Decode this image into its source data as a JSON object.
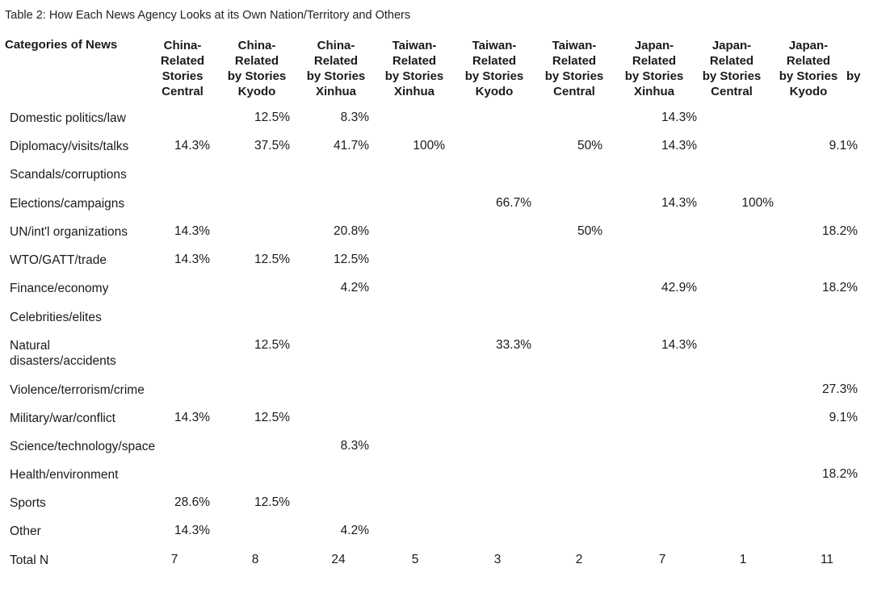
{
  "caption": "Table 2: How Each News Agency Looks at its Own Nation/Territory and Others",
  "stub_header": "Categories of News",
  "column_headers": [
    [
      "China-",
      "Related",
      "Stories",
      "Central"
    ],
    [
      "China-",
      "Related",
      "by Stories",
      "Kyodo"
    ],
    [
      "China-",
      "Related",
      "by Stories",
      "Xinhua"
    ],
    [
      "Taiwan-",
      "Related",
      "by Stories",
      "Xinhua"
    ],
    [
      "Taiwan-",
      "Related",
      "by Stories",
      "Kyodo"
    ],
    [
      "Taiwan-",
      "Related",
      "by Stories",
      "Central"
    ],
    [
      "Japan-",
      "Related",
      "by Stories",
      "Xinhua"
    ],
    [
      "Japan-",
      "Related",
      "by Stories",
      "Central"
    ],
    [
      "Japan-",
      "Related",
      "by Stories",
      "Kyodo"
    ]
  ],
  "trailing_header": "by",
  "rows": [
    {
      "category": [
        "Domestic politics/law"
      ],
      "values": [
        "",
        "12.5%",
        "8.3%",
        "",
        "",
        "",
        "14.3%",
        "",
        ""
      ]
    },
    {
      "category": [
        "Diplomacy/visits/talks"
      ],
      "values": [
        "14.3%",
        "37.5%",
        "41.7%",
        "100%",
        "",
        "50%",
        "14.3%",
        "",
        "9.1%"
      ]
    },
    {
      "category": [
        "Scandals/corruptions"
      ],
      "values": [
        "",
        "",
        "",
        "",
        "",
        "",
        "",
        "",
        ""
      ]
    },
    {
      "category": [
        "Elections/campaigns"
      ],
      "values": [
        "",
        "",
        "",
        "",
        "66.7%",
        "",
        "14.3%",
        "100%",
        ""
      ]
    },
    {
      "category": [
        "UN/int'l organizations"
      ],
      "values": [
        "14.3%",
        "",
        "20.8%",
        "",
        "",
        "50%",
        "",
        "",
        "18.2%"
      ]
    },
    {
      "category": [
        "WTO/GATT/trade"
      ],
      "values": [
        "14.3%",
        "12.5%",
        "12.5%",
        "",
        "",
        "",
        "",
        "",
        ""
      ]
    },
    {
      "category": [
        "Finance/economy"
      ],
      "values": [
        "",
        "",
        "4.2%",
        "",
        "",
        "",
        "42.9%",
        "",
        "18.2%"
      ]
    },
    {
      "category": [
        "Celebrities/elites"
      ],
      "values": [
        "",
        "",
        "",
        "",
        "",
        "",
        "",
        "",
        ""
      ]
    },
    {
      "category": [
        "Natural",
        "disasters/accidents"
      ],
      "values": [
        "",
        "12.5%",
        "",
        "",
        "33.3%",
        "",
        "14.3%",
        "",
        ""
      ]
    },
    {
      "category": [
        "Violence/terrorism/crime"
      ],
      "values": [
        "",
        "",
        "",
        "",
        "",
        "",
        "",
        "",
        "27.3%"
      ]
    },
    {
      "category": [
        "Military/war/conflict"
      ],
      "values": [
        "14.3%",
        "12.5%",
        "",
        "",
        "",
        "",
        "",
        "",
        "9.1%"
      ]
    },
    {
      "category": [
        "Science/technology/space"
      ],
      "values": [
        "",
        "",
        "8.3%",
        "",
        "",
        "",
        "",
        "",
        ""
      ]
    },
    {
      "category": [
        "Health/environment"
      ],
      "values": [
        "",
        "",
        "",
        "",
        "",
        "",
        "",
        "",
        "18.2%"
      ]
    },
    {
      "category": [
        "Sports"
      ],
      "values": [
        "28.6%",
        "12.5%",
        "",
        "",
        "",
        "",
        "",
        "",
        ""
      ]
    },
    {
      "category": [
        "Other"
      ],
      "values": [
        "14.3%",
        "",
        "4.2%",
        "",
        "",
        "",
        "",
        "",
        ""
      ]
    },
    {
      "category": [
        "Total N"
      ],
      "values": [
        "7",
        "8",
        "24",
        "5",
        "3",
        "2",
        "7",
        "1",
        "11"
      ]
    }
  ]
}
